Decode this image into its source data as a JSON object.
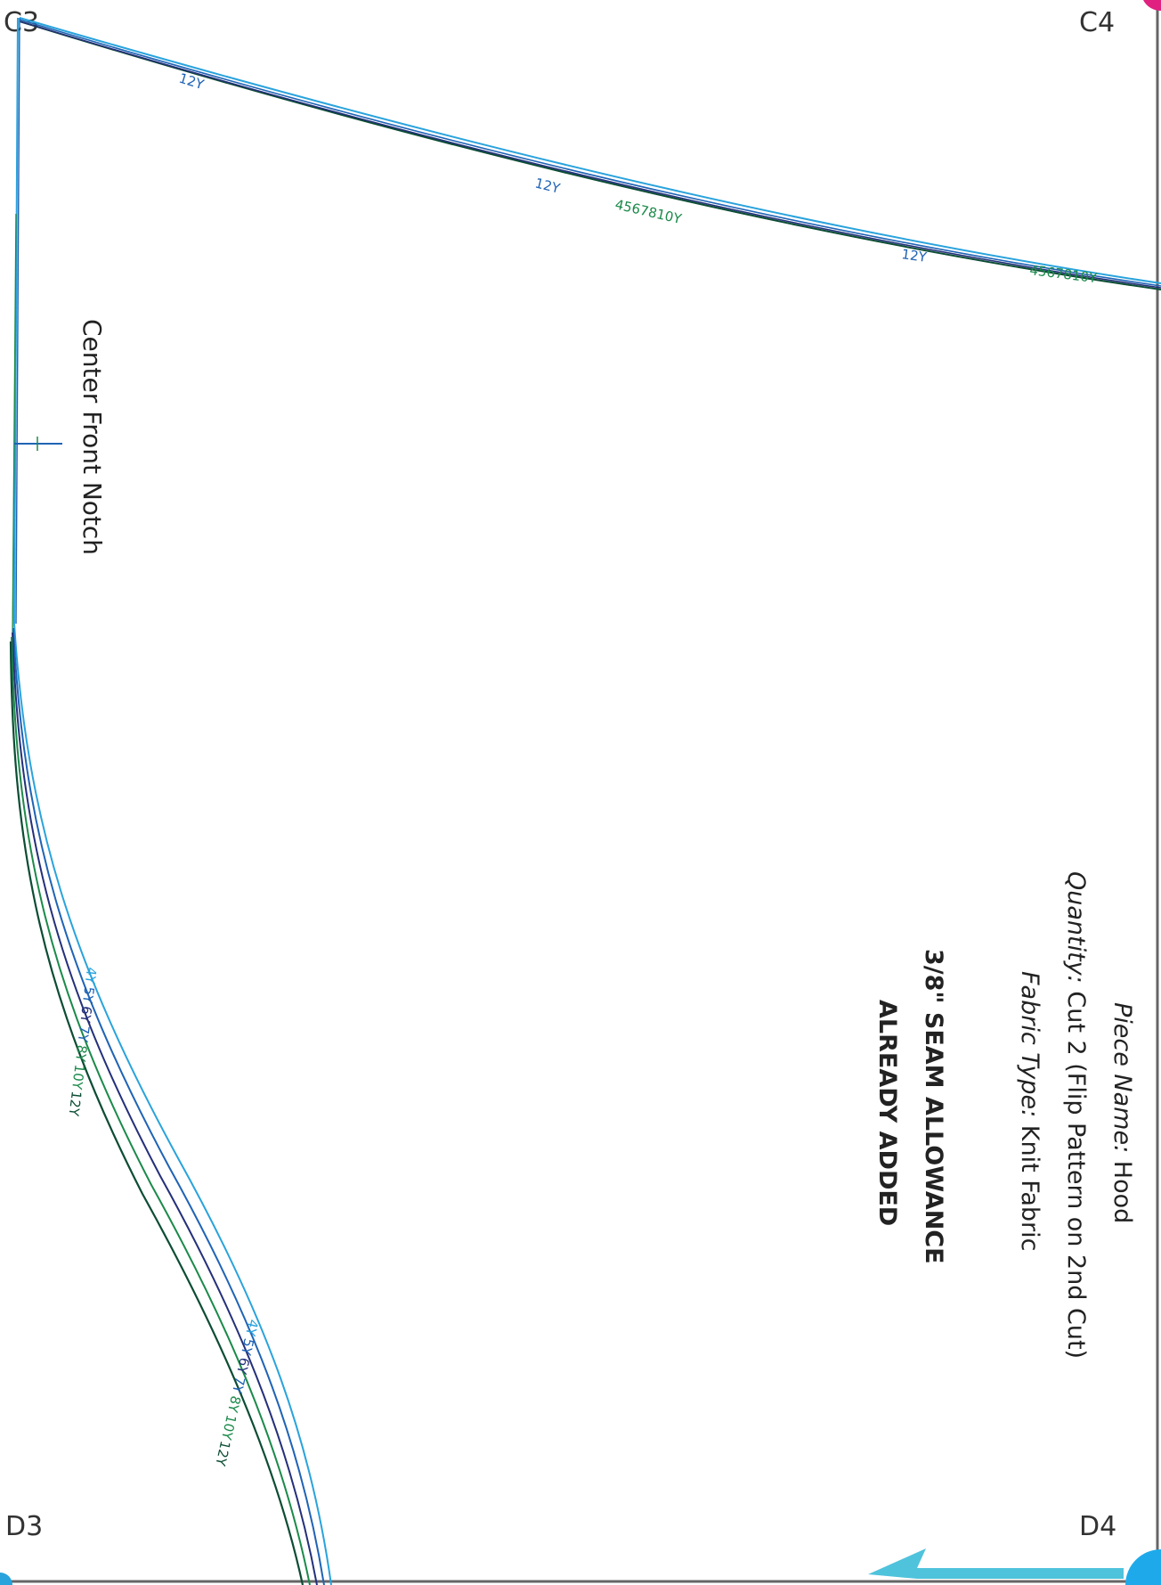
{
  "corners": {
    "top_left": "C3",
    "top_right": "C4",
    "bottom_left": "D3",
    "bottom_right": "D4"
  },
  "notch_label": "Center Front Notch",
  "piece_info": {
    "piece_name_label": "Piece Name:",
    "piece_name_value": " Hood",
    "quantity_label": "Quantity:",
    "quantity_value": " Cut 2 (Flip Pattern on 2nd Cut)",
    "fabric_label": "Fabric Type:",
    "fabric_value": " Knit Fabric",
    "seam_line1": "3/8\" SEAM ALLOWANCE",
    "seam_line2": "ALREADY ADDED"
  },
  "size_labels": {
    "top_a": "12Y",
    "top_b": "12Y",
    "top_c": "12Y",
    "top_d": "4567810Y",
    "top_e": "4567810Y",
    "curve_upper": [
      "4Y",
      "5Y",
      "6Y",
      "7Y",
      "8Y",
      "10Y",
      "12Y"
    ],
    "curve_lower": [
      "4Y",
      "5Y",
      "6Y",
      "7Y",
      "8Y",
      "10Y",
      "12Y"
    ]
  },
  "colors": {
    "sky": "#29a3dc",
    "blue": "#1f63b5",
    "navy": "#24307a",
    "green": "#1b8a4a",
    "dark_green": "#0c4d34",
    "magenta": "#e0217f",
    "cyan_arrow": "#4fc3dc"
  }
}
